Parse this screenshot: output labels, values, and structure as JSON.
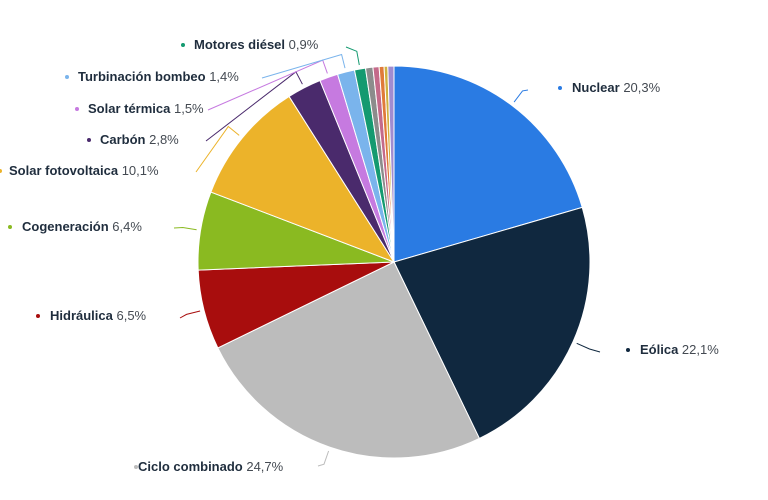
{
  "chart_data": {
    "type": "pie",
    "title": "",
    "slices": [
      {
        "label": "Nuclear",
        "value_text": "20,3%",
        "value": 20.3,
        "color": "#2a7be3"
      },
      {
        "label": "Eólica",
        "value_text": "22,1%",
        "value": 22.1,
        "color": "#10283f"
      },
      {
        "label": "Ciclo combinado",
        "value_text": "24,7%",
        "value": 24.7,
        "color": "#bcbcbc"
      },
      {
        "label": "Hidráulica",
        "value_text": "6,5%",
        "value": 6.5,
        "color": "#a80d0d"
      },
      {
        "label": "Cogeneración",
        "value_text": "6,4%",
        "value": 6.4,
        "color": "#8aba21"
      },
      {
        "label": "Solar fotovoltaica",
        "value_text": "10,1%",
        "value": 10.1,
        "color": "#ecb32a"
      },
      {
        "label": "Carbón",
        "value_text": "2,8%",
        "value": 2.8,
        "color": "#4a2a6c"
      },
      {
        "label": "Solar térmica",
        "value_text": "1,5%",
        "value": 1.5,
        "color": "#c67ae0"
      },
      {
        "label": "Turbinación bombeo",
        "value_text": "1,4%",
        "value": 1.4,
        "color": "#7ab4ec"
      },
      {
        "label": "Motores diésel",
        "value_text": "0,9%",
        "value": 0.9,
        "color": "#149a70"
      },
      {
        "value": 0.6,
        "color": "#8c8c8c"
      },
      {
        "value": 0.5,
        "color": "#c46a8a"
      },
      {
        "value": 0.4,
        "color": "#e07a3a"
      },
      {
        "value": 0.3,
        "color": "#d0b040"
      },
      {
        "value": 0.5,
        "color": "#a08cd0"
      }
    ]
  }
}
